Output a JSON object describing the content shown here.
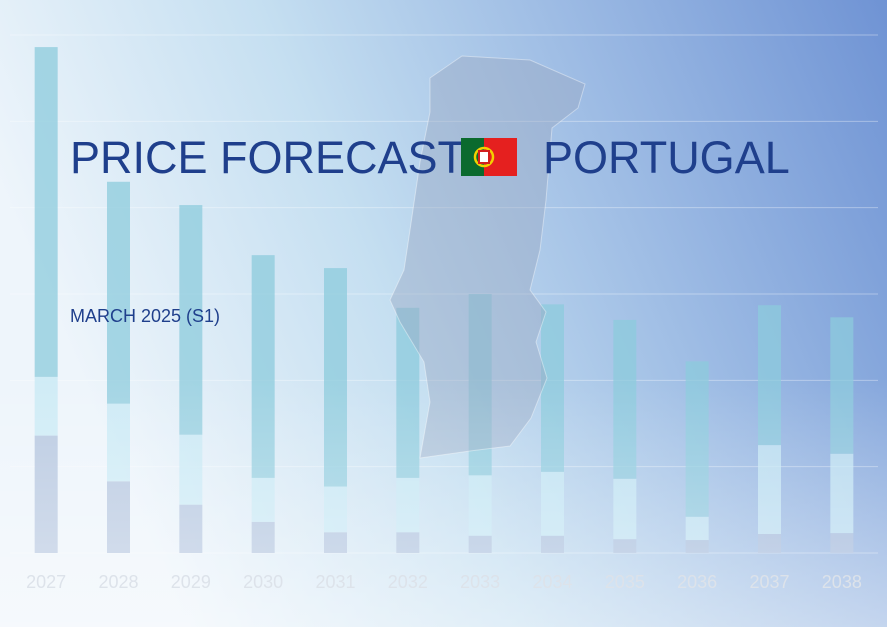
{
  "header": {
    "title": "PRICE FORECAST",
    "country": "PORTUGAL",
    "subtitle": "MARCH 2025 (S1)"
  },
  "chart_data": {
    "type": "stacked_bar",
    "categories": [
      "2027",
      "2028",
      "2029",
      "2030",
      "2031",
      "2032",
      "2033",
      "2034",
      "2035",
      "2036",
      "2037",
      "2038"
    ],
    "series": [
      {
        "color": "#a9bcd9",
        "values": [
          1.36,
          0.83,
          0.56,
          0.36,
          0.24,
          0.24,
          0.2,
          0.2,
          0.16,
          0.15,
          0.22,
          0.23
        ]
      },
      {
        "color": "#c6e8f4",
        "values": [
          0.68,
          0.9,
          0.81,
          0.51,
          0.53,
          0.63,
          0.7,
          0.74,
          0.7,
          0.27,
          1.03,
          0.92
        ]
      },
      {
        "color": "#8ccbdc",
        "values": [
          3.82,
          2.57,
          2.66,
          2.58,
          2.53,
          1.97,
          2.1,
          1.94,
          1.84,
          1.8,
          1.62,
          1.58
        ]
      }
    ],
    "ylim": [
      0,
      6
    ],
    "yticks": [
      0,
      1,
      2,
      3,
      4,
      5,
      6
    ],
    "grid": true
  }
}
